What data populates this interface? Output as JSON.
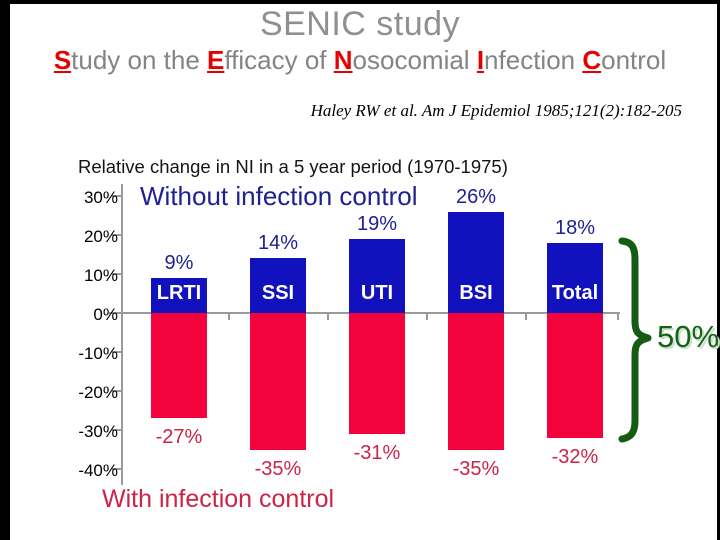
{
  "slide": {
    "title": "SENIC study",
    "subtitle_parts": [
      {
        "initial": "S",
        "rest": "tudy on the "
      },
      {
        "initial": "E",
        "rest": "fficacy of "
      },
      {
        "initial": "N",
        "rest": "osocomial "
      },
      {
        "initial": "I",
        "rest": "nfection "
      },
      {
        "initial": "C",
        "rest": "ontrol"
      }
    ],
    "citation": "Haley RW et al. Am J Epidemiol 1985;121(2):182-205"
  },
  "chart_data": {
    "type": "bar",
    "title": "Relative change in NI in a 5 year period (1970-1975)",
    "categories": [
      "LRTI",
      "SSI",
      "UTI",
      "BSI",
      "Total"
    ],
    "series": [
      {
        "name": "Without infection control",
        "values": [
          9,
          14,
          19,
          26,
          18
        ]
      },
      {
        "name": "With infection control",
        "values": [
          -27,
          -35,
          -31,
          -35,
          -32
        ]
      }
    ],
    "value_labels": {
      "positive": [
        "9%",
        "14%",
        "19%",
        "26%",
        "18%"
      ],
      "negative": [
        "-27%",
        "-35%",
        "-31%",
        "-35%",
        "-32%"
      ]
    },
    "xlabel": "",
    "ylabel": "",
    "ylim": [
      -40,
      30
    ],
    "yticks": [
      30,
      20,
      10,
      0,
      -10,
      -20,
      -30,
      -40
    ],
    "ytick_labels": [
      "30%",
      "20%",
      "10%",
      "0%",
      "-10%",
      "-20%",
      "-30%",
      "-40%"
    ],
    "grid": false,
    "legend_position": "inline-text-annotations",
    "annotation": {
      "label": "50%"
    }
  },
  "colors": {
    "positive_bar": "#1111BE",
    "negative_bar": "#F3023C",
    "positive_label": "#1F2193",
    "negative_label": "#CC2347",
    "category_label": "#FFFFFF",
    "brace": "#145C14",
    "brace_label": "#156315",
    "title_gray": "#8F8F8F",
    "subtitle_gray": "#848484",
    "acronym_red": "#E60000",
    "axis_gray": "#9A9A9A"
  }
}
